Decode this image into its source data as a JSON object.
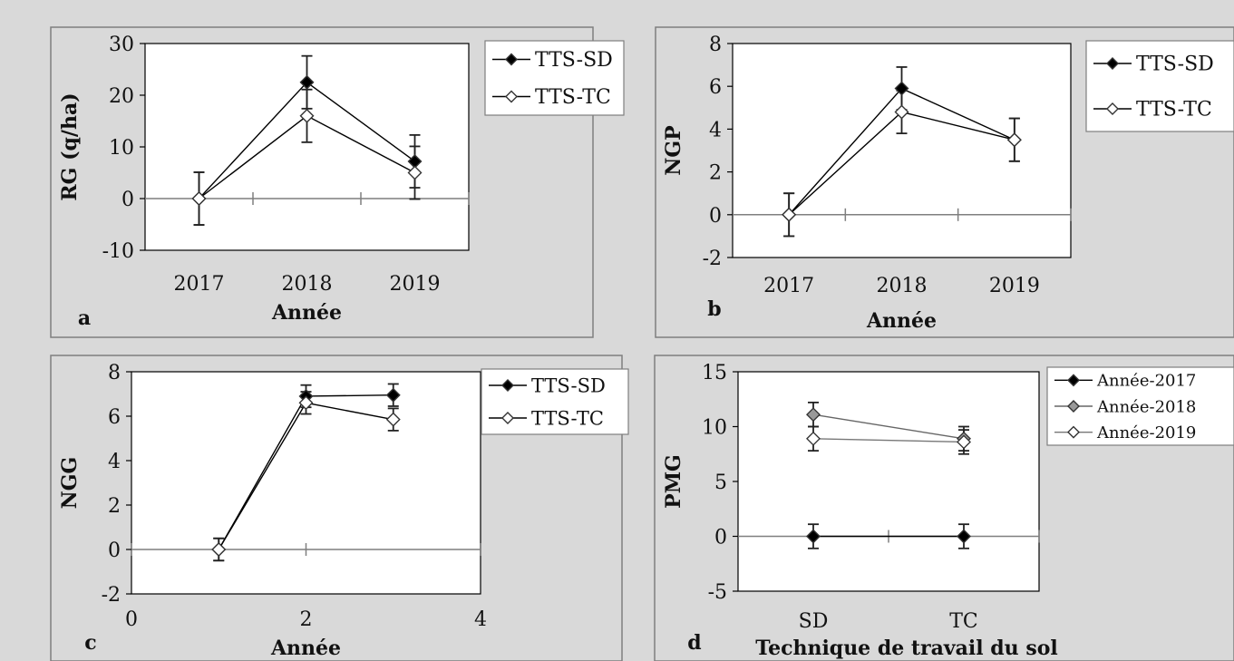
{
  "chart_data": [
    {
      "type": "line",
      "panel_letter": "a",
      "ylabel": "RG (q/ha)",
      "xlabel": "Année",
      "categories": [
        "2017",
        "2018",
        "2019"
      ],
      "ylim": [
        -10,
        30
      ],
      "yticks": [
        "30",
        "20",
        "10",
        "0",
        "-10"
      ],
      "legend_position": "top-right",
      "series": [
        {
          "name": "TTS-SD",
          "values": [
            0,
            22.5,
            7.2
          ],
          "errors": [
            5.1,
            5.1,
            5.1
          ],
          "marker_fill": "#000000",
          "line_color": "#000000"
        },
        {
          "name": "TTS-TC",
          "values": [
            0,
            16,
            5
          ],
          "errors": [
            5.1,
            5.1,
            5.1
          ],
          "marker_fill": "#ffffff",
          "line_color": "#000000"
        }
      ]
    },
    {
      "type": "line",
      "panel_letter": "b",
      "ylabel": "NGP",
      "xlabel": "Année",
      "categories": [
        "2017",
        "2018",
        "2019"
      ],
      "ylim": [
        -2,
        8
      ],
      "yticks": [
        "8",
        "6",
        "4",
        "2",
        "0",
        "-2"
      ],
      "legend_position": "top-right",
      "series": [
        {
          "name": "TTS-SD",
          "values": [
            0,
            5.9,
            3.5
          ],
          "errors": [
            1,
            1,
            1
          ],
          "marker_fill": "#000000",
          "line_color": "#000000"
        },
        {
          "name": "TTS-TC",
          "values": [
            0,
            4.8,
            3.5
          ],
          "errors": [
            1,
            1,
            1
          ],
          "marker_fill": "#ffffff",
          "line_color": "#000000"
        }
      ]
    },
    {
      "type": "scatter",
      "panel_letter": "c",
      "ylabel": "NGG",
      "xlabel": "Année",
      "xlim": [
        0,
        4
      ],
      "xticks": [
        "0",
        "2",
        "4"
      ],
      "ylim": [
        -2,
        8
      ],
      "yticks": [
        "8",
        "6",
        "4",
        "2",
        "0",
        "-2"
      ],
      "legend_position": "top-right",
      "series": [
        {
          "name": "TTS-SD",
          "x": [
            1,
            2,
            3
          ],
          "values": [
            0,
            6.9,
            6.95
          ],
          "errors": [
            0.5,
            0.5,
            0.5
          ],
          "marker_fill": "#000000",
          "line_color": "#000000"
        },
        {
          "name": "TTS-TC",
          "x": [
            1,
            2,
            3
          ],
          "values": [
            0,
            6.6,
            5.85
          ],
          "errors": [
            0.5,
            0.5,
            0.5
          ],
          "marker_fill": "#ffffff",
          "line_color": "#000000"
        }
      ]
    },
    {
      "type": "line",
      "panel_letter": "d",
      "ylabel": "PMG",
      "xlabel": "Technique de travail du sol",
      "categories": [
        "SD",
        "TC"
      ],
      "ylim": [
        -5,
        15
      ],
      "yticks": [
        "15",
        "10",
        "5",
        "0",
        "-5"
      ],
      "legend_position": "top-right",
      "series": [
        {
          "name": "Année-2017",
          "values": [
            0,
            0
          ],
          "errors": [
            1.1,
            1.1
          ],
          "marker_fill": "#000000",
          "line_color": "#000000"
        },
        {
          "name": "Année-2018",
          "values": [
            11.1,
            8.9
          ],
          "errors": [
            1.1,
            1.1
          ],
          "marker_fill": "#999999",
          "line_color": "#666666"
        },
        {
          "name": "Année-2019",
          "values": [
            8.9,
            8.6
          ],
          "errors": [
            1.1,
            1.1
          ],
          "marker_fill": "#ffffff",
          "line_color": "#777777"
        }
      ]
    }
  ]
}
